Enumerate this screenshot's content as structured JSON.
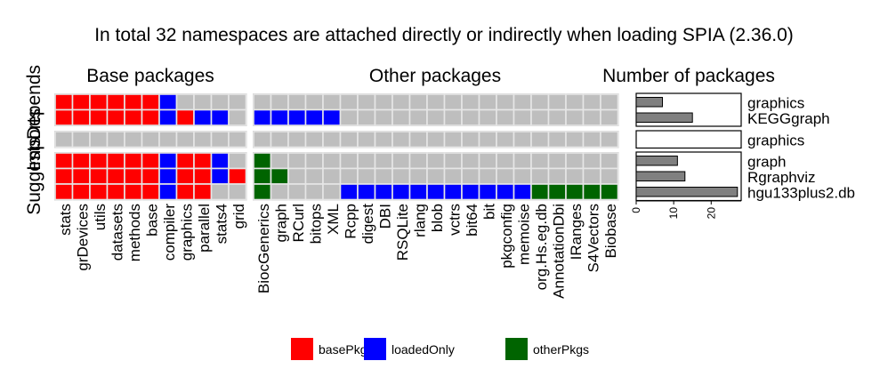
{
  "chart_data": {
    "type": "heatmap",
    "title": "In total 32 namespaces are attached directly or indirectly when loading SPIA (2.36.0)",
    "section_titles": [
      "Base packages",
      "Other packages",
      "Number of packages"
    ],
    "row_group_labels": [
      "Depends",
      "Imports",
      "Suggests"
    ],
    "rows": [
      {
        "group": "Depends",
        "name": "graphics",
        "count": 7
      },
      {
        "group": "Depends",
        "name": "KEGGgraph",
        "count": 15
      },
      {
        "group": "Imports",
        "name": "graphics",
        "count": 0
      },
      {
        "group": "Suggests",
        "name": "graph",
        "count": 11
      },
      {
        "group": "Suggests",
        "name": "Rgraphviz",
        "count": 13
      },
      {
        "group": "Suggests",
        "name": "hgu133plus2.db",
        "count": 27
      }
    ],
    "base_packages": [
      "stats",
      "grDevices",
      "utils",
      "datasets",
      "methods",
      "base",
      "compiler",
      "graphics",
      "parallel",
      "stats4",
      "grid"
    ],
    "other_packages": [
      "BiocGenerics",
      "graph",
      "RCurl",
      "bitops",
      "XML",
      "Rcpp",
      "digest",
      "DBI",
      "RSQLite",
      "rlang",
      "blob",
      "vctrs",
      "bit64",
      "bit",
      "pkgconfig",
      "memoise",
      "org.Hs.eg.db",
      "AnnotationDbi",
      "IRanges",
      "S4Vectors",
      "Biobase"
    ],
    "base_matrix": [
      [
        1,
        1,
        1,
        1,
        1,
        1,
        2,
        0,
        0,
        0,
        0
      ],
      [
        1,
        1,
        1,
        1,
        1,
        1,
        2,
        1,
        2,
        2,
        0
      ],
      [
        0,
        0,
        0,
        0,
        0,
        0,
        0,
        0,
        0,
        0,
        0
      ],
      [
        1,
        1,
        1,
        1,
        1,
        1,
        2,
        1,
        1,
        2,
        0
      ],
      [
        1,
        1,
        1,
        1,
        1,
        1,
        2,
        1,
        1,
        2,
        1
      ],
      [
        1,
        1,
        1,
        1,
        1,
        1,
        2,
        1,
        1,
        0,
        0
      ]
    ],
    "other_matrix": [
      [
        0,
        0,
        0,
        0,
        0,
        0,
        0,
        0,
        0,
        0,
        0,
        0,
        0,
        0,
        0,
        0,
        0,
        0,
        0,
        0,
        0
      ],
      [
        2,
        2,
        2,
        2,
        2,
        0,
        0,
        0,
        0,
        0,
        0,
        0,
        0,
        0,
        0,
        0,
        0,
        0,
        0,
        0,
        0
      ],
      [
        0,
        0,
        0,
        0,
        0,
        0,
        0,
        0,
        0,
        0,
        0,
        0,
        0,
        0,
        0,
        0,
        0,
        0,
        0,
        0,
        0
      ],
      [
        3,
        0,
        0,
        0,
        0,
        0,
        0,
        0,
        0,
        0,
        0,
        0,
        0,
        0,
        0,
        0,
        0,
        0,
        0,
        0,
        0
      ],
      [
        3,
        3,
        0,
        0,
        0,
        0,
        0,
        0,
        0,
        0,
        0,
        0,
        0,
        0,
        0,
        0,
        0,
        0,
        0,
        0,
        0
      ],
      [
        3,
        0,
        0,
        0,
        0,
        2,
        2,
        2,
        2,
        2,
        2,
        2,
        2,
        2,
        2,
        2,
        3,
        3,
        3,
        3,
        3
      ]
    ],
    "bar_axis_ticks": [
      "0",
      "10",
      "20"
    ],
    "bar_axis_max": 28,
    "legend": [
      {
        "label": "basePkgs",
        "color": "#ff0000"
      },
      {
        "label": "loadedOnly",
        "color": "#0000ff"
      },
      {
        "label": "otherPkgs",
        "color": "#006400"
      }
    ],
    "colors": {
      "empty": "#bebebe",
      "basePkgs": "#ff0000",
      "loadedOnly": "#0000ff",
      "otherPkgs": "#006400",
      "bar_fill": "#808080"
    },
    "legend_placement": "bottom"
  }
}
